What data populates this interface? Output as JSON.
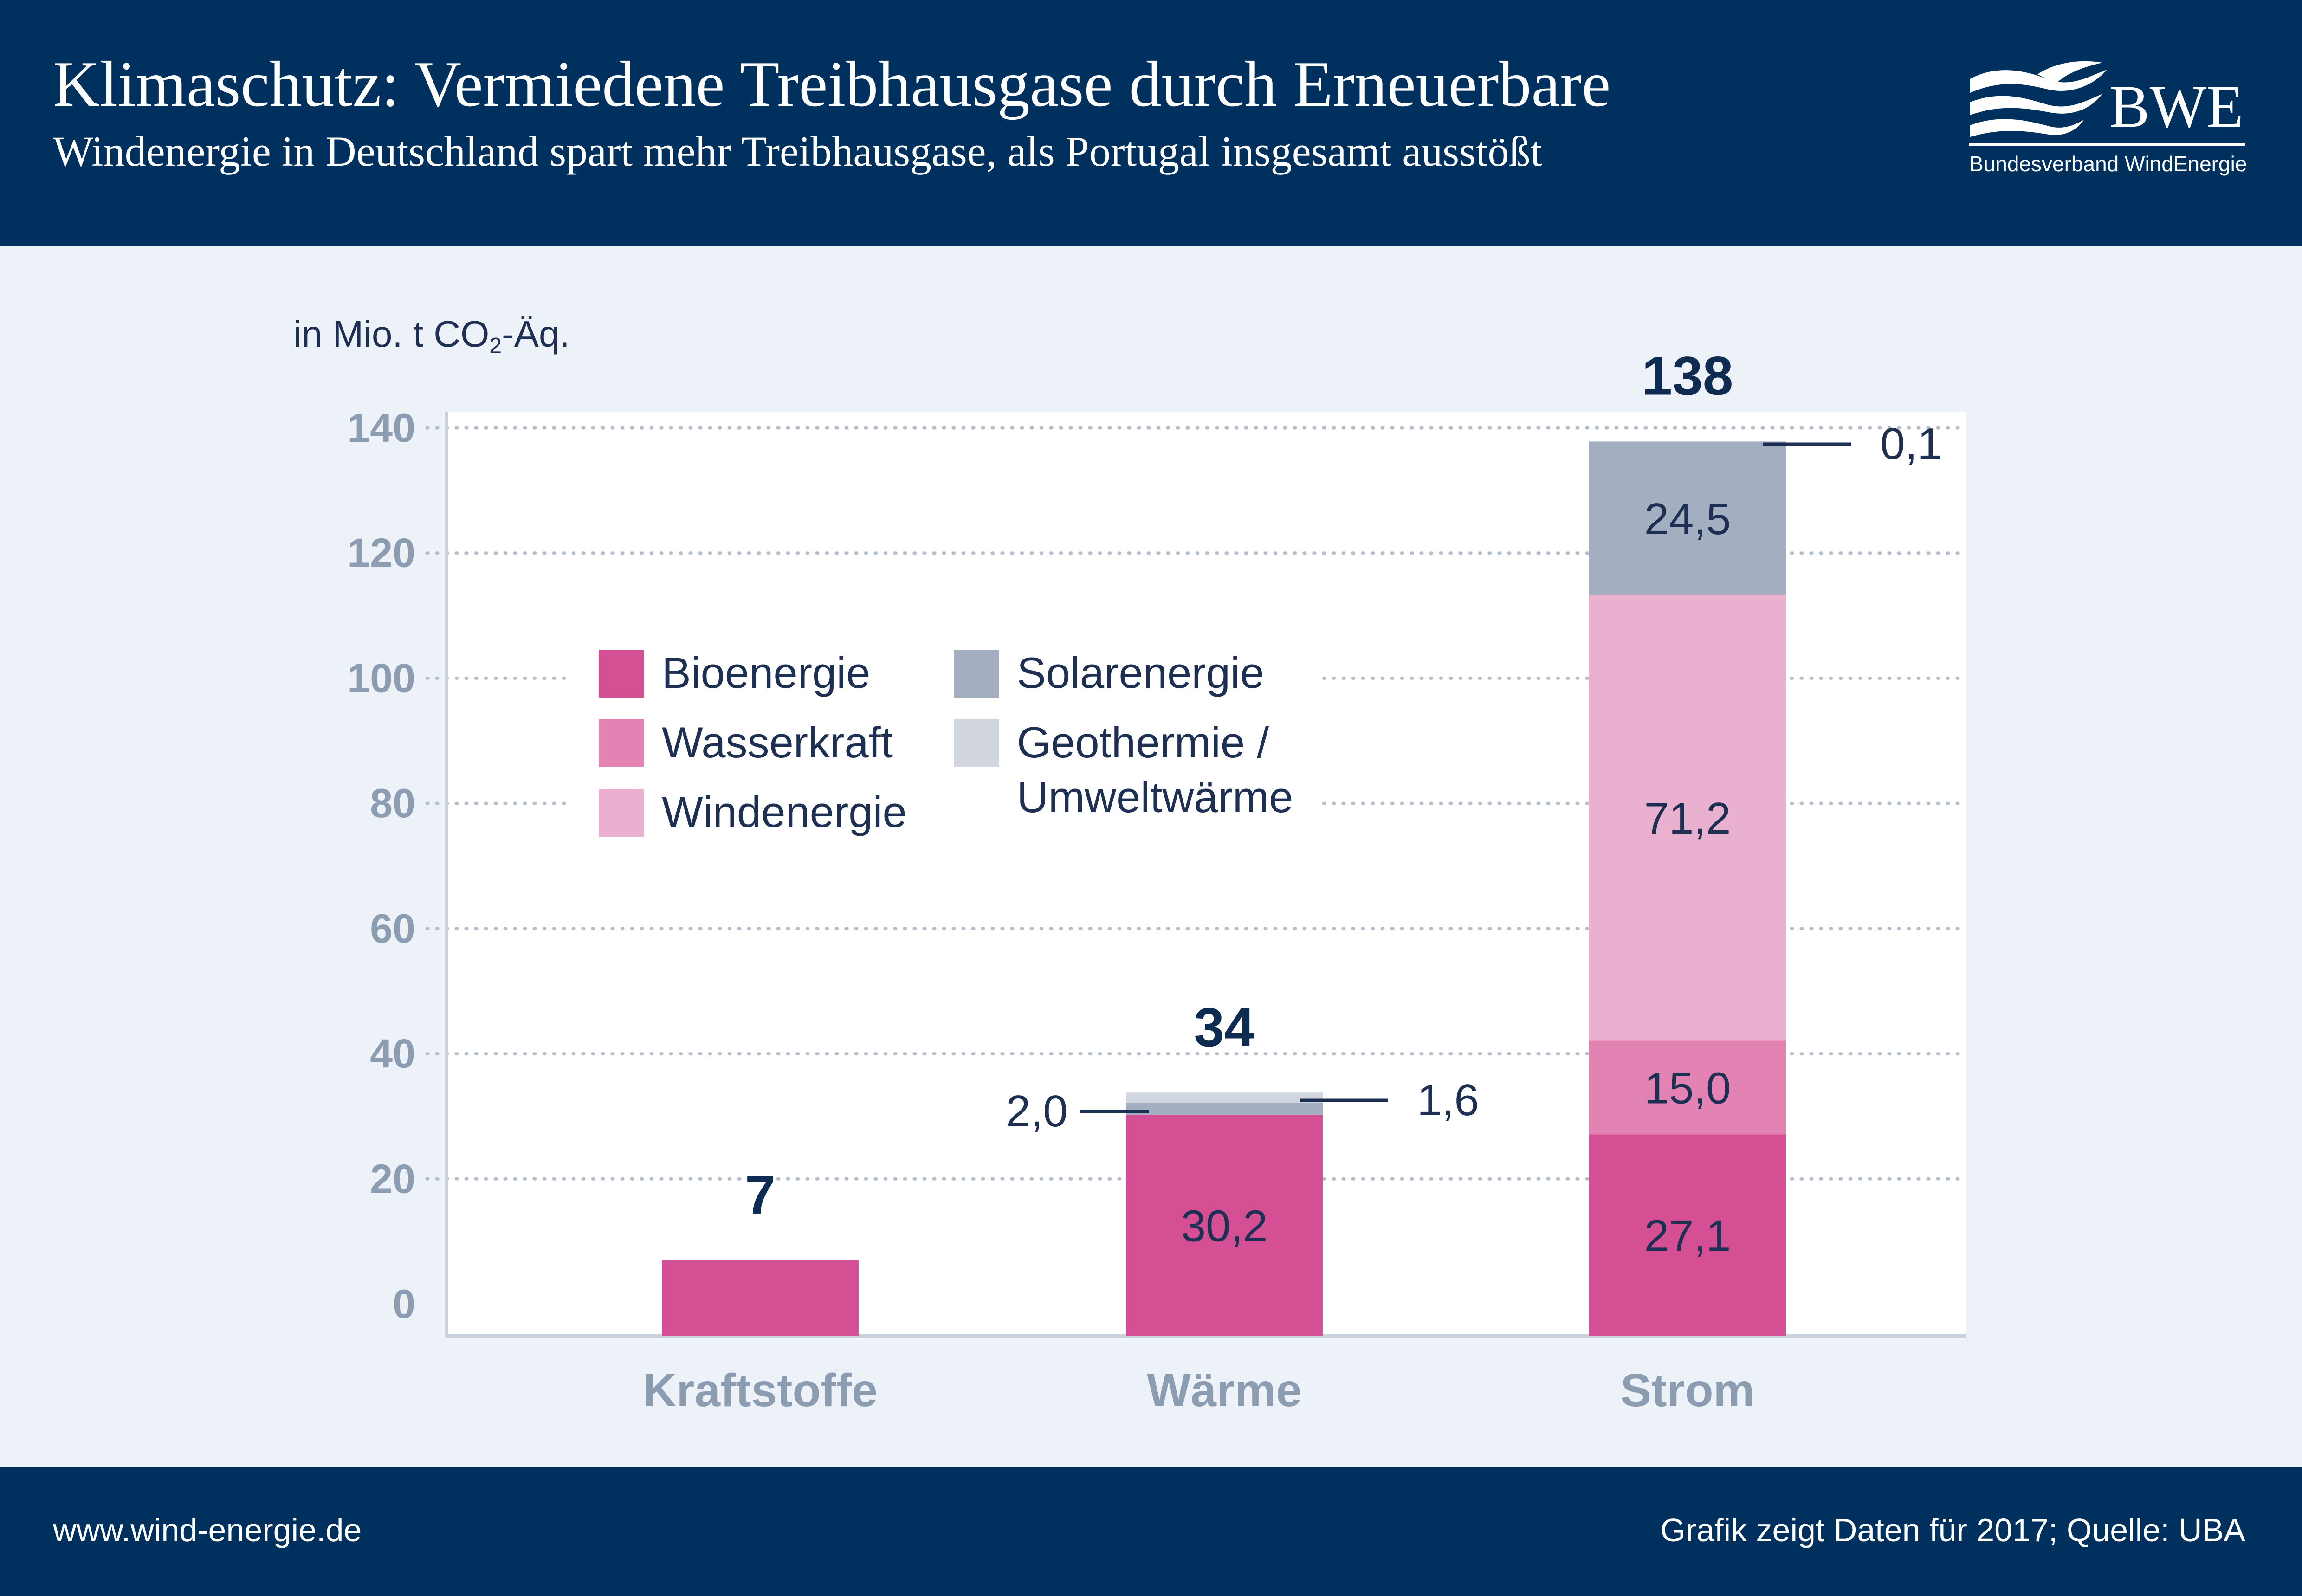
{
  "header": {
    "title": "Klimaschutz: Vermiedene Treibhausgase durch Erneuerbare",
    "subtitle": "Windenergie in Deutschland spart mehr Treibhausgase, als Portugal insgesamt ausstößt",
    "logo_text": "BWE",
    "logo_subtext": "Bundesverband WindEnergie"
  },
  "unit": {
    "prefix": "in Mio. t CO",
    "subscript": "2",
    "suffix": "-Äq."
  },
  "footer": {
    "website": "www.wind-energie.de",
    "source": "Grafik zeigt Daten für 2017; Quelle: UBA"
  },
  "colors": {
    "header_bg": "#00305d",
    "page_bg": "#edf1f8",
    "Bioenergie": "#d44f93",
    "Wasserkraft": "#e283b4",
    "Windenergie": "#e9b1cf",
    "Solarenergie": "#a3afc0",
    "Geothermie": "#d0d5de"
  },
  "chart_data": {
    "type": "bar",
    "stacked": true,
    "categories": [
      "Kraftstoffe",
      "Wärme",
      "Strom"
    ],
    "series": [
      {
        "name": "Bioenergie",
        "values": [
          7,
          30.2,
          27.1
        ],
        "labels": [
          "",
          "30,2",
          "27,1"
        ]
      },
      {
        "name": "Wasserkraft",
        "values": [
          0,
          0,
          15.0
        ],
        "labels": [
          "",
          "",
          "15,0"
        ]
      },
      {
        "name": "Windenergie",
        "values": [
          0,
          0,
          71.2
        ],
        "labels": [
          "",
          "",
          "71,2"
        ]
      },
      {
        "name": "Solarenergie",
        "values": [
          0,
          2.0,
          24.5
        ],
        "labels": [
          "",
          "2,0",
          "24,5"
        ]
      },
      {
        "name": "Geothermie / Umweltwärme",
        "values": [
          0,
          1.6,
          0.1
        ],
        "labels": [
          "",
          "1,6",
          "0,1"
        ]
      }
    ],
    "totals": [
      "7",
      "34",
      "138"
    ],
    "legend": [
      [
        "Bioenergie"
      ],
      [
        "Wasserkraft"
      ],
      [
        "Windenergie"
      ],
      [
        "Solarenergie"
      ],
      [
        "Geothermie /",
        "Umweltwärme"
      ]
    ],
    "ylim": [
      0,
      140
    ],
    "yticks": [
      0,
      20,
      40,
      60,
      80,
      100,
      120,
      140
    ],
    "grid": true,
    "xlabel": "",
    "ylabel": "in Mio. t CO2-Äq."
  }
}
